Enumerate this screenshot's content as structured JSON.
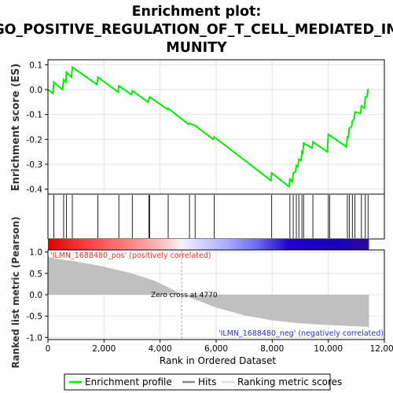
{
  "chart_data": [
    {
      "type": "line",
      "title_lines": [
        "Enrichment plot:",
        "GO_POSITIVE_REGULATION_OF_T_CELL_MEDIATED_IM",
        "MUNITY"
      ],
      "ylabel": "Enrichment score (ES)",
      "xlim": [
        0,
        12000
      ],
      "ylim": [
        -0.42,
        0.12
      ],
      "yticks": [
        0.1,
        0.0,
        -0.1,
        -0.2,
        -0.3,
        -0.4
      ],
      "ytick_labels": [
        "0.1",
        "0.0",
        "-0.1",
        "-0.2",
        "-0.3",
        "-0.4"
      ],
      "grid": true,
      "series": [
        {
          "name": "Enrichment profile",
          "color": "#00ee00",
          "points": [
            [
              0,
              0.0
            ],
            [
              180,
              -0.015
            ],
            [
              210,
              0.03
            ],
            [
              520,
              0.0
            ],
            [
              560,
              0.04
            ],
            [
              640,
              0.03
            ],
            [
              660,
              0.07
            ],
            [
              840,
              0.05
            ],
            [
              870,
              0.09
            ],
            [
              1750,
              0.02
            ],
            [
              1780,
              0.05
            ],
            [
              2500,
              -0.01
            ],
            [
              2530,
              0.015
            ],
            [
              2980,
              -0.02
            ],
            [
              3010,
              -0.005
            ],
            [
              3570,
              -0.05
            ],
            [
              3600,
              -0.04
            ],
            [
              3630,
              -0.03
            ],
            [
              4270,
              -0.08
            ],
            [
              4290,
              -0.075
            ],
            [
              5020,
              -0.14
            ],
            [
              5050,
              -0.135
            ],
            [
              5250,
              -0.145
            ],
            [
              5900,
              -0.2
            ],
            [
              5930,
              -0.19
            ],
            [
              7950,
              -0.365
            ],
            [
              7980,
              -0.335
            ],
            [
              8600,
              -0.39
            ],
            [
              8630,
              -0.36
            ],
            [
              8720,
              -0.37
            ],
            [
              8750,
              -0.335
            ],
            [
              8830,
              -0.33
            ],
            [
              8860,
              -0.305
            ],
            [
              8920,
              -0.31
            ],
            [
              8950,
              -0.28
            ],
            [
              9030,
              -0.285
            ],
            [
              9060,
              -0.25
            ],
            [
              9090,
              -0.255
            ],
            [
              9120,
              -0.215
            ],
            [
              9420,
              -0.235
            ],
            [
              9450,
              -0.21
            ],
            [
              9970,
              -0.25
            ],
            [
              10000,
              -0.18
            ],
            [
              10650,
              -0.23
            ],
            [
              10680,
              -0.19
            ],
            [
              10720,
              -0.19
            ],
            [
              10750,
              -0.155
            ],
            [
              10830,
              -0.15
            ],
            [
              10860,
              -0.125
            ],
            [
              10920,
              -0.12
            ],
            [
              10950,
              -0.09
            ],
            [
              11150,
              -0.095
            ],
            [
              11180,
              -0.065
            ],
            [
              11290,
              -0.075
            ],
            [
              11320,
              -0.03
            ],
            [
              11380,
              -0.03
            ],
            [
              11420,
              0.003
            ]
          ]
        }
      ]
    },
    {
      "type": "scatter",
      "name": "Hits",
      "legend": "Hits",
      "xlim": [
        0,
        12000
      ],
      "hits": [
        210,
        560,
        660,
        870,
        1780,
        2530,
        3010,
        3600,
        3630,
        4290,
        5050,
        5250,
        5930,
        7980,
        8630,
        8750,
        8860,
        8950,
        9060,
        9120,
        9450,
        10000,
        10050,
        10680,
        10750,
        10860,
        10950,
        11180,
        11320,
        11420
      ]
    },
    {
      "type": "heatmap",
      "xlim": [
        0,
        11450
      ],
      "color_stops": [
        {
          "x": 0,
          "color": "#dd0000"
        },
        {
          "x": 700,
          "color": "#ee2222"
        },
        {
          "x": 1700,
          "color": "#ff4d4d"
        },
        {
          "x": 2700,
          "color": "#ff7a7a"
        },
        {
          "x": 3700,
          "color": "#ffaaaa"
        },
        {
          "x": 4400,
          "color": "#ffd6d6"
        },
        {
          "x": 4770,
          "color": "#f4f4ff"
        },
        {
          "x": 5400,
          "color": "#d6d6ff"
        },
        {
          "x": 6400,
          "color": "#aaaaff"
        },
        {
          "x": 7400,
          "color": "#6f6fee"
        },
        {
          "x": 8600,
          "color": "#2200cc"
        },
        {
          "x": 10300,
          "color": "#1a00b8"
        },
        {
          "x": 11450,
          "color": "#2d0a9a"
        }
      ],
      "pos_label": "'ILMN_1688480_pos' (positively correlated)",
      "neg_label": "'ILMN_1688480_neg' (negatively correlated)"
    },
    {
      "type": "area",
      "name": "Ranking metric scores",
      "ylabel": "Ranked list metric (Pearson)",
      "xlabel": "Rank in Ordered Dataset",
      "xlim": [
        0,
        12000
      ],
      "ylim": [
        -1.05,
        1.05
      ],
      "xticks": [
        0,
        2000,
        4000,
        6000,
        8000,
        10000,
        12000
      ],
      "xtick_labels": [
        "0",
        "2,000",
        "4,000",
        "6,000",
        "8,000",
        "10,000",
        "12,000"
      ],
      "yticks": [
        1.0,
        0.5,
        0.0,
        -0.5,
        -1.0
      ],
      "ytick_labels": [
        "1.0",
        "0.5",
        "0.0",
        "-0.5",
        "-1.0"
      ],
      "zero_cross_label": "Zero cross at 4770",
      "zero_cross": 4770,
      "color": "#c0c0c0",
      "points": [
        [
          0,
          0.92
        ],
        [
          50,
          0.88
        ],
        [
          300,
          0.84
        ],
        [
          1000,
          0.78
        ],
        [
          2000,
          0.66
        ],
        [
          3000,
          0.5
        ],
        [
          3800,
          0.33
        ],
        [
          4400,
          0.14
        ],
        [
          4770,
          0.0
        ],
        [
          5200,
          -0.1
        ],
        [
          6000,
          -0.3
        ],
        [
          7000,
          -0.48
        ],
        [
          8000,
          -0.6
        ],
        [
          9000,
          -0.67
        ],
        [
          10000,
          -0.71
        ],
        [
          11000,
          -0.74
        ],
        [
          11400,
          -0.75
        ],
        [
          11450,
          -0.79
        ]
      ]
    }
  ],
  "legend": {
    "items": [
      "Enrichment profile",
      "Hits",
      "Ranking metric scores"
    ],
    "colors": [
      "#00ee00",
      "#888888",
      "#dddddd"
    ]
  }
}
